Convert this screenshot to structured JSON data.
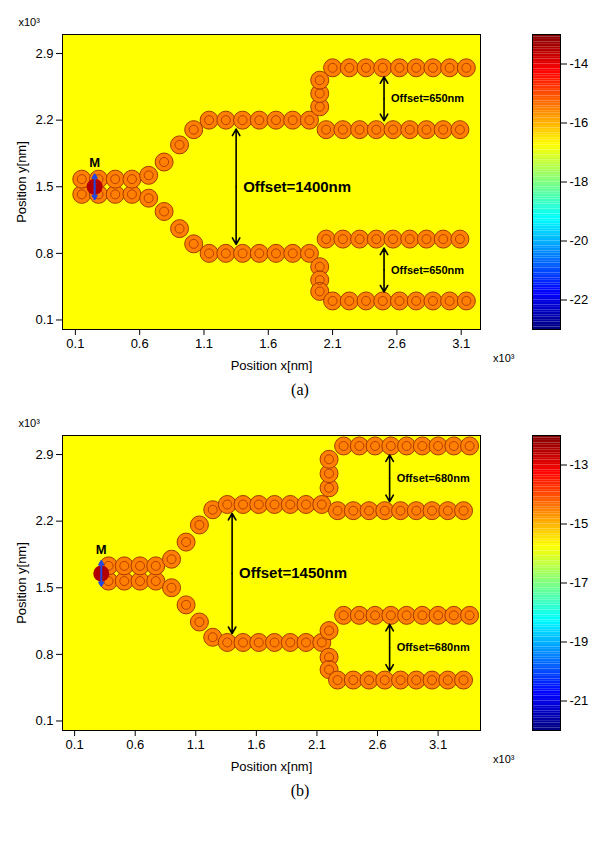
{
  "chart_data": [
    {
      "type": "heatmap",
      "caption": "(a)",
      "x_label": "Position x[nm]",
      "y_label": "Position y[nm]",
      "axis_multiplier": "x10³",
      "xlim": [
        0,
        3.25
      ],
      "xticks": [
        0.1,
        0.6,
        1.1,
        1.6,
        2.1,
        2.6,
        3.1
      ],
      "ylim": [
        0,
        3.1
      ],
      "yticks": [
        0.1,
        0.8,
        1.5,
        2.2,
        2.9
      ],
      "colorbar": {
        "range": [
          -23,
          -13
        ],
        "ticks": [
          -14,
          -16,
          -18,
          -20,
          -22
        ]
      },
      "background_value": -16.75,
      "structure": {
        "value": -15.5,
        "x": [
          0.15,
          0.15,
          0.28,
          0.28,
          0.41,
          0.41,
          0.54,
          0.54,
          0.67,
          0.67,
          0.79,
          0.91,
          1.02,
          0.79,
          0.91,
          1.02,
          1.14,
          1.27,
          1.4,
          1.53,
          1.66,
          1.79,
          1.92,
          2.05,
          2.18,
          2.31,
          2.44,
          2.57,
          2.7,
          2.83,
          2.96,
          3.09,
          2.0,
          2.0,
          2.0,
          2.1,
          2.23,
          2.36,
          2.49,
          2.62,
          2.75,
          2.88,
          3.01,
          3.14,
          1.14,
          1.27,
          1.4,
          1.53,
          1.66,
          1.79,
          1.92,
          2.05,
          2.18,
          2.31,
          2.44,
          2.57,
          2.7,
          2.83,
          2.96,
          3.09,
          2.0,
          2.0,
          2.0,
          2.1,
          2.23,
          2.36,
          2.49,
          2.62,
          2.75,
          2.88,
          3.01,
          3.14
        ],
        "y": [
          1.42,
          1.58,
          1.42,
          1.58,
          1.42,
          1.58,
          1.42,
          1.58,
          1.38,
          1.62,
          1.76,
          1.94,
          2.1,
          1.24,
          1.06,
          0.9,
          2.2,
          2.2,
          2.2,
          2.2,
          2.2,
          2.2,
          2.2,
          2.1,
          2.1,
          2.1,
          2.1,
          2.1,
          2.1,
          2.1,
          2.1,
          2.1,
          2.34,
          2.48,
          2.62,
          2.75,
          2.75,
          2.75,
          2.75,
          2.75,
          2.75,
          2.75,
          2.75,
          2.75,
          0.8,
          0.8,
          0.8,
          0.8,
          0.8,
          0.8,
          0.8,
          0.95,
          0.95,
          0.95,
          0.95,
          0.95,
          0.95,
          0.95,
          0.95,
          0.95,
          0.66,
          0.52,
          0.4,
          0.3,
          0.3,
          0.3,
          0.3,
          0.3,
          0.3,
          0.3,
          0.3,
          0.3
        ]
      },
      "source": {
        "label": "M",
        "x": 0.25,
        "y": 1.5,
        "value": -13.5
      },
      "annotations": [
        {
          "text": "Offset=1400nm",
          "offset": 1400,
          "x": 1.35,
          "y": 1.5
        },
        {
          "text": "Offset=650nm",
          "offset": 650,
          "x": 2.5,
          "y": 2.425
        },
        {
          "text": "Offset=650nm",
          "offset": 650,
          "x": 2.5,
          "y": 0.625
        }
      ]
    },
    {
      "type": "heatmap",
      "caption": "(b)",
      "x_label": "Position x[nm]",
      "y_label": "Position y[nm]",
      "axis_multiplier": "x10³",
      "xlim": [
        0,
        3.45
      ],
      "xticks": [
        0.1,
        0.6,
        1.1,
        1.6,
        2.1,
        2.6,
        3.1
      ],
      "ylim": [
        0,
        3.1
      ],
      "yticks": [
        0.1,
        0.8,
        1.5,
        2.2,
        2.9
      ],
      "colorbar": {
        "range": [
          -22,
          -12
        ],
        "ticks": [
          -13,
          -15,
          -17,
          -19,
          -21
        ]
      },
      "background_value": -15.75,
      "structure": {
        "value": -14.5,
        "x": [
          0.38,
          0.38,
          0.51,
          0.51,
          0.64,
          0.64,
          0.77,
          0.77,
          0.9,
          0.9,
          1.02,
          1.13,
          1.24,
          1.02,
          1.13,
          1.24,
          1.36,
          1.49,
          1.62,
          1.75,
          1.88,
          2.01,
          2.14,
          2.27,
          2.4,
          2.53,
          2.66,
          2.79,
          2.92,
          3.05,
          3.18,
          3.31,
          2.2,
          2.2,
          2.2,
          2.32,
          2.45,
          2.58,
          2.71,
          2.84,
          2.97,
          3.1,
          3.23,
          3.36,
          1.36,
          1.49,
          1.62,
          1.75,
          1.88,
          2.01,
          2.14,
          2.2,
          2.32,
          2.45,
          2.58,
          2.71,
          2.84,
          2.97,
          3.1,
          3.23,
          3.36,
          2.2,
          2.2,
          2.27,
          2.4,
          2.53,
          2.66,
          2.79,
          2.92,
          3.05,
          3.18,
          3.31
        ],
        "y": [
          1.57,
          1.73,
          1.57,
          1.73,
          1.57,
          1.73,
          1.57,
          1.73,
          1.5,
          1.8,
          1.98,
          2.16,
          2.32,
          1.32,
          1.14,
          0.98,
          2.375,
          2.375,
          2.375,
          2.375,
          2.375,
          2.375,
          2.375,
          2.31,
          2.31,
          2.31,
          2.31,
          2.31,
          2.31,
          2.31,
          2.31,
          2.31,
          2.55,
          2.7,
          2.85,
          2.99,
          2.99,
          2.99,
          2.99,
          2.99,
          2.99,
          2.99,
          2.99,
          2.99,
          0.925,
          0.925,
          0.925,
          0.925,
          0.925,
          0.925,
          0.925,
          1.05,
          1.21,
          1.21,
          1.21,
          1.21,
          1.21,
          1.21,
          1.21,
          1.21,
          1.21,
          0.77,
          0.64,
          0.53,
          0.53,
          0.53,
          0.53,
          0.53,
          0.53,
          0.53,
          0.53,
          0.53
        ]
      },
      "source": {
        "label": "M",
        "x": 0.32,
        "y": 1.65,
        "value": -12.5
      },
      "annotations": [
        {
          "text": "Offset=1450nm",
          "offset": 1450,
          "x": 1.4,
          "y": 1.65
        },
        {
          "text": "Offset=680nm",
          "offset": 680,
          "x": 2.7,
          "y": 2.65
        },
        {
          "text": "Offset=680nm",
          "offset": 680,
          "x": 2.7,
          "y": 0.87
        }
      ]
    }
  ]
}
